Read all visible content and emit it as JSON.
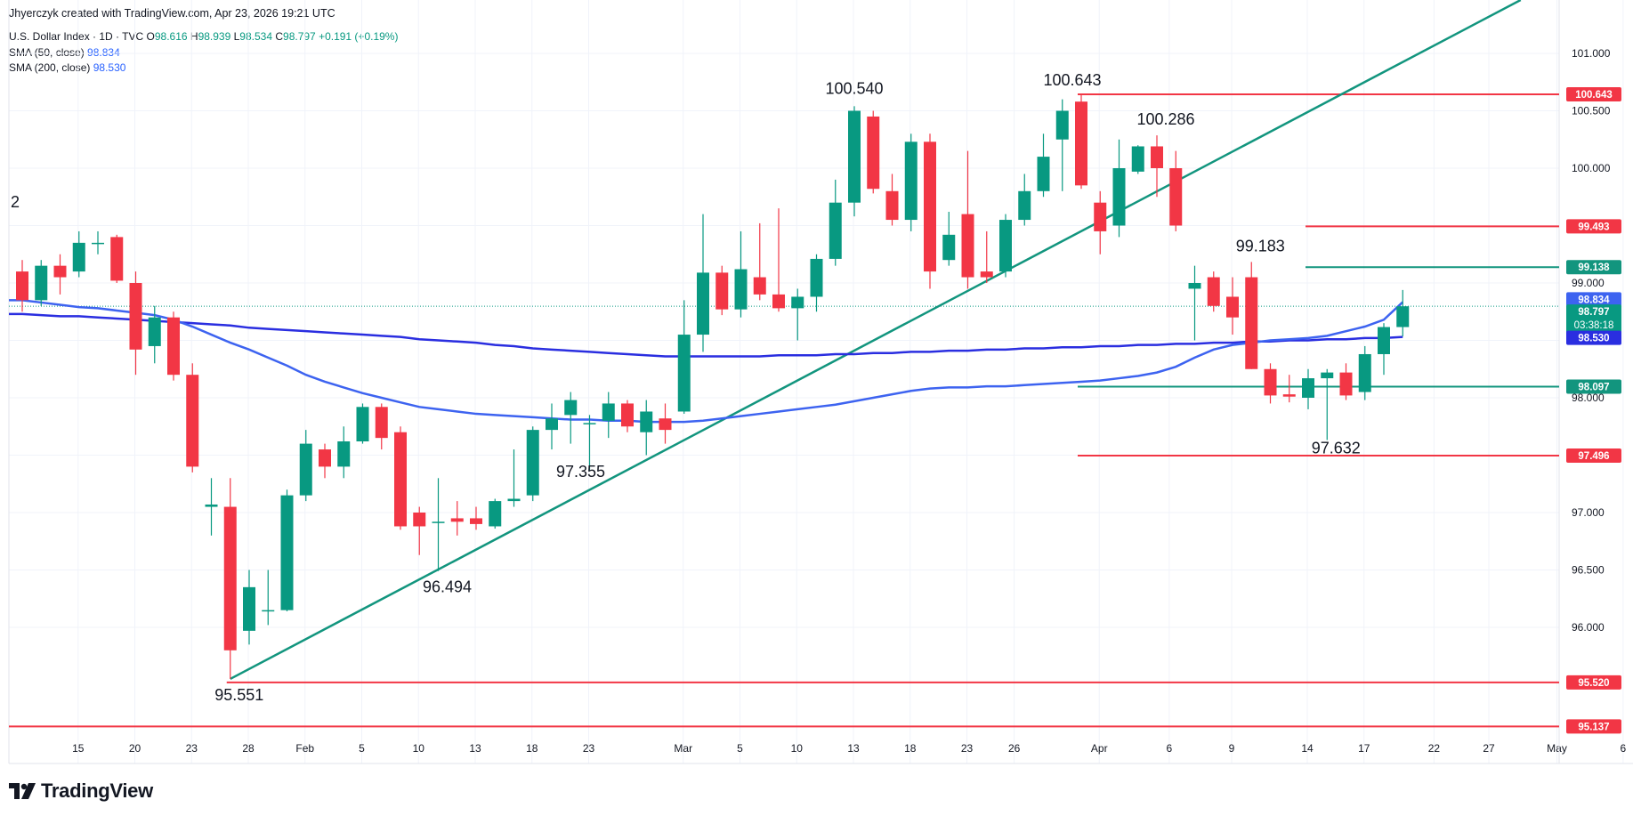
{
  "header": {
    "credit": "Jhyerczyk created with TradingView.com, Apr 23, 2026 19:21 UTC",
    "symbol": "U.S. Dollar Index · 1D · TVC",
    "open_label": "O",
    "open": "98.616",
    "high_label": "H",
    "high": "98.939",
    "low_label": "L",
    "low": "98.534",
    "close_label": "C",
    "close": "98.797",
    "change": "+0.191 (+0.19%)",
    "sma50_label": "SMA (50, close)",
    "sma50_value": "98.834",
    "sma200_label": "SMA (200, close)",
    "sma200_value": "98.530"
  },
  "logo_text": "TradingView",
  "colors": {
    "up": "#089981",
    "down": "#f23645",
    "sma50": "#3d63f0",
    "sma200": "#2a2ee0",
    "trend": "#12957e",
    "red_level": "#f23645",
    "green_level": "#12957e",
    "grid": "#f0f3fa"
  },
  "chart_data": {
    "type": "candlestick",
    "title": "U.S. Dollar Index · 1D · TVC",
    "x_ticks": [
      "15",
      "20",
      "23",
      "28",
      "Feb",
      "5",
      "10",
      "13",
      "18",
      "23",
      "Mar",
      "5",
      "10",
      "13",
      "18",
      "23",
      "26",
      "Apr",
      "6",
      "9",
      "14",
      "17",
      "22",
      "27",
      "May",
      "6"
    ],
    "y_ticks": [
      "96.000",
      "96.500",
      "97.000",
      "97.500",
      "98.000",
      "98.500",
      "99.000",
      "99.500",
      "100.000",
      "100.500",
      "101.000"
    ],
    "ylim": [
      95.0,
      101.3
    ],
    "candles": [
      {
        "date": "Jan 12",
        "o": 99.1,
        "h": 99.2,
        "l": 98.75,
        "c": 98.85
      },
      {
        "date": "Jan 13",
        "o": 98.85,
        "h": 99.2,
        "l": 98.8,
        "c": 99.15
      },
      {
        "date": "Jan 14",
        "o": 99.15,
        "h": 99.25,
        "l": 98.9,
        "c": 99.05
      },
      {
        "date": "Jan 15",
        "o": 99.1,
        "h": 99.45,
        "l": 99.05,
        "c": 99.35
      },
      {
        "date": "Jan 16",
        "o": 99.35,
        "h": 99.45,
        "l": 99.25,
        "c": 99.35
      },
      {
        "date": "Jan 19",
        "o": 99.4,
        "h": 99.42,
        "l": 99.0,
        "c": 99.02
      },
      {
        "date": "Jan 20",
        "o": 99.0,
        "h": 99.1,
        "l": 98.2,
        "c": 98.42
      },
      {
        "date": "Jan 21",
        "o": 98.45,
        "h": 98.8,
        "l": 98.3,
        "c": 98.7
      },
      {
        "date": "Jan 22",
        "o": 98.7,
        "h": 98.75,
        "l": 98.15,
        "c": 98.2
      },
      {
        "date": "Jan 23",
        "o": 98.2,
        "h": 98.3,
        "l": 97.35,
        "c": 97.4
      },
      {
        "date": "Jan 26",
        "o": 97.05,
        "h": 97.3,
        "l": 96.8,
        "c": 97.07
      },
      {
        "date": "Jan 27",
        "o": 97.05,
        "h": 97.3,
        "l": 95.55,
        "c": 95.8
      },
      {
        "date": "Jan 28",
        "o": 95.97,
        "h": 96.5,
        "l": 95.85,
        "c": 96.35
      },
      {
        "date": "Jan 29",
        "o": 96.14,
        "h": 96.5,
        "l": 96.02,
        "c": 96.15
      },
      {
        "date": "Jan 30",
        "o": 96.15,
        "h": 97.2,
        "l": 96.14,
        "c": 97.15
      },
      {
        "date": "Feb 2",
        "o": 97.15,
        "h": 97.72,
        "l": 97.1,
        "c": 97.6
      },
      {
        "date": "Feb 3",
        "o": 97.55,
        "h": 97.6,
        "l": 97.3,
        "c": 97.4
      },
      {
        "date": "Feb 4",
        "o": 97.4,
        "h": 97.75,
        "l": 97.3,
        "c": 97.62
      },
      {
        "date": "Feb 5",
        "o": 97.62,
        "h": 97.95,
        "l": 97.6,
        "c": 97.92
      },
      {
        "date": "Feb 6",
        "o": 97.92,
        "h": 97.95,
        "l": 97.55,
        "c": 97.65
      },
      {
        "date": "Feb 9",
        "o": 97.7,
        "h": 97.75,
        "l": 96.85,
        "c": 96.88
      },
      {
        "date": "Feb 10",
        "o": 97.0,
        "h": 97.05,
        "l": 96.63,
        "c": 96.88
      },
      {
        "date": "Feb 11",
        "o": 96.92,
        "h": 97.3,
        "l": 96.49,
        "c": 96.92
      },
      {
        "date": "Feb 12",
        "o": 96.95,
        "h": 97.1,
        "l": 96.8,
        "c": 96.92
      },
      {
        "date": "Feb 13",
        "o": 96.95,
        "h": 97.05,
        "l": 96.85,
        "c": 96.9
      },
      {
        "date": "Feb 16",
        "o": 96.88,
        "h": 97.12,
        "l": 96.86,
        "c": 97.1
      },
      {
        "date": "Feb 17",
        "o": 97.1,
        "h": 97.55,
        "l": 97.05,
        "c": 97.12
      },
      {
        "date": "Feb 18",
        "o": 97.15,
        "h": 97.75,
        "l": 97.1,
        "c": 97.72
      },
      {
        "date": "Feb 19",
        "o": 97.72,
        "h": 97.95,
        "l": 97.55,
        "c": 97.82
      },
      {
        "date": "Feb 20",
        "o": 97.85,
        "h": 98.05,
        "l": 97.6,
        "c": 97.98
      },
      {
        "date": "Feb 23",
        "o": 97.78,
        "h": 97.85,
        "l": 97.36,
        "c": 97.78
      },
      {
        "date": "Feb 24",
        "o": 97.8,
        "h": 98.05,
        "l": 97.65,
        "c": 97.95
      },
      {
        "date": "Feb 25",
        "o": 97.95,
        "h": 97.98,
        "l": 97.7,
        "c": 97.75
      },
      {
        "date": "Feb 26",
        "o": 97.7,
        "h": 97.98,
        "l": 97.5,
        "c": 97.88
      },
      {
        "date": "Feb 27",
        "o": 97.82,
        "h": 97.95,
        "l": 97.6,
        "c": 97.72
      },
      {
        "date": "Mar 2",
        "o": 97.88,
        "h": 98.85,
        "l": 97.86,
        "c": 98.55
      },
      {
        "date": "Mar 3",
        "o": 98.55,
        "h": 99.6,
        "l": 98.4,
        "c": 99.09
      },
      {
        "date": "Mar 4",
        "o": 99.09,
        "h": 99.15,
        "l": 98.72,
        "c": 98.77
      },
      {
        "date": "Mar 5",
        "o": 98.77,
        "h": 99.45,
        "l": 98.7,
        "c": 99.12
      },
      {
        "date": "Mar 6",
        "o": 99.05,
        "h": 99.52,
        "l": 98.85,
        "c": 98.9
      },
      {
        "date": "Mar 9",
        "o": 98.9,
        "h": 99.65,
        "l": 98.75,
        "c": 98.78
      },
      {
        "date": "Mar 10",
        "o": 98.78,
        "h": 98.95,
        "l": 98.5,
        "c": 98.88
      },
      {
        "date": "Mar 11",
        "o": 98.88,
        "h": 99.25,
        "l": 98.75,
        "c": 99.21
      },
      {
        "date": "Mar 12",
        "o": 99.21,
        "h": 99.9,
        "l": 99.15,
        "c": 99.7
      },
      {
        "date": "Mar 13",
        "o": 99.7,
        "h": 100.54,
        "l": 99.58,
        "c": 100.5
      },
      {
        "date": "Mar 16",
        "o": 100.45,
        "h": 100.5,
        "l": 99.78,
        "c": 99.82
      },
      {
        "date": "Mar 17",
        "o": 99.8,
        "h": 99.95,
        "l": 99.5,
        "c": 99.55
      },
      {
        "date": "Mar 18",
        "o": 99.55,
        "h": 100.3,
        "l": 99.45,
        "c": 100.23
      },
      {
        "date": "Mar 19",
        "o": 100.23,
        "h": 100.3,
        "l": 98.95,
        "c": 99.1
      },
      {
        "date": "Mar 20",
        "o": 99.2,
        "h": 99.62,
        "l": 99.15,
        "c": 99.42
      },
      {
        "date": "Mar 23",
        "o": 99.6,
        "h": 100.15,
        "l": 98.95,
        "c": 99.05
      },
      {
        "date": "Mar 24",
        "o": 99.1,
        "h": 99.45,
        "l": 99.0,
        "c": 99.05
      },
      {
        "date": "Mar 25",
        "o": 99.1,
        "h": 99.6,
        "l": 99.05,
        "c": 99.55
      },
      {
        "date": "Mar 26",
        "o": 99.55,
        "h": 99.95,
        "l": 99.5,
        "c": 99.8
      },
      {
        "date": "Mar 27",
        "o": 99.8,
        "h": 100.3,
        "l": 99.75,
        "c": 100.1
      },
      {
        "date": "Mar 30",
        "o": 100.25,
        "h": 100.6,
        "l": 99.8,
        "c": 100.5
      },
      {
        "date": "Mar 31",
        "o": 100.58,
        "h": 100.643,
        "l": 99.82,
        "c": 99.85
      },
      {
        "date": "Apr 1",
        "o": 99.7,
        "h": 99.8,
        "l": 99.25,
        "c": 99.45
      },
      {
        "date": "Apr 2",
        "o": 99.5,
        "h": 100.25,
        "l": 99.4,
        "c": 100.0
      },
      {
        "date": "Apr 3",
        "o": 99.97,
        "h": 100.2,
        "l": 99.95,
        "c": 100.19
      },
      {
        "date": "Apr 6",
        "o": 100.19,
        "h": 100.286,
        "l": 99.75,
        "c": 100.0
      },
      {
        "date": "Apr 7",
        "o": 100.0,
        "h": 100.15,
        "l": 99.45,
        "c": 99.5
      },
      {
        "date": "Apr 8",
        "o": 98.95,
        "h": 99.15,
        "l": 98.5,
        "c": 99.0
      },
      {
        "date": "Apr 9",
        "o": 99.05,
        "h": 99.1,
        "l": 98.75,
        "c": 98.8
      },
      {
        "date": "Apr 10",
        "o": 98.88,
        "h": 99.05,
        "l": 98.55,
        "c": 98.7
      },
      {
        "date": "Apr 13",
        "o": 99.05,
        "h": 99.183,
        "l": 98.25,
        "c": 98.25
      },
      {
        "date": "Apr 14",
        "o": 98.25,
        "h": 98.3,
        "l": 97.95,
        "c": 98.02
      },
      {
        "date": "Apr 15",
        "o": 98.03,
        "h": 98.2,
        "l": 97.96,
        "c": 98.01
      },
      {
        "date": "Apr 16",
        "o": 98.0,
        "h": 98.25,
        "l": 97.9,
        "c": 98.17
      },
      {
        "date": "Apr 17",
        "o": 98.17,
        "h": 98.25,
        "l": 97.632,
        "c": 98.22
      },
      {
        "date": "Apr 20",
        "o": 98.22,
        "h": 98.3,
        "l": 97.98,
        "c": 98.02
      },
      {
        "date": "Apr 21",
        "o": 98.05,
        "h": 98.45,
        "l": 97.98,
        "c": 98.38
      },
      {
        "date": "Apr 22",
        "o": 98.38,
        "h": 98.65,
        "l": 98.2,
        "c": 98.616
      },
      {
        "date": "Apr 23",
        "o": 98.616,
        "h": 98.939,
        "l": 98.534,
        "c": 98.797
      }
    ],
    "sma50": [
      98.85,
      98.83,
      98.81,
      98.79,
      98.78,
      98.76,
      98.74,
      98.72,
      98.68,
      98.62,
      98.55,
      98.48,
      98.42,
      98.35,
      98.28,
      98.2,
      98.14,
      98.09,
      98.04,
      98.0,
      97.96,
      97.92,
      97.9,
      97.88,
      97.86,
      97.85,
      97.84,
      97.83,
      97.82,
      97.81,
      97.81,
      97.8,
      97.8,
      97.79,
      97.79,
      97.79,
      97.8,
      97.82,
      97.84,
      97.86,
      97.88,
      97.9,
      97.92,
      97.94,
      97.97,
      98.0,
      98.03,
      98.06,
      98.08,
      98.09,
      98.09,
      98.1,
      98.1,
      98.11,
      98.12,
      98.13,
      98.14,
      98.15,
      98.17,
      98.19,
      98.22,
      98.27,
      98.35,
      98.42,
      98.46,
      98.48,
      98.5,
      98.51,
      98.52,
      98.54,
      98.58,
      98.62,
      98.68,
      98.834
    ],
    "sma200": [
      98.73,
      98.72,
      98.71,
      98.71,
      98.7,
      98.69,
      98.68,
      98.67,
      98.66,
      98.65,
      98.64,
      98.63,
      98.61,
      98.6,
      98.59,
      98.58,
      98.57,
      98.56,
      98.55,
      98.54,
      98.53,
      98.51,
      98.5,
      98.49,
      98.48,
      98.46,
      98.45,
      98.43,
      98.42,
      98.41,
      98.4,
      98.39,
      98.38,
      98.37,
      98.36,
      98.36,
      98.36,
      98.36,
      98.36,
      98.36,
      98.37,
      98.37,
      98.37,
      98.38,
      98.38,
      98.39,
      98.39,
      98.4,
      98.4,
      98.41,
      98.41,
      98.42,
      98.42,
      98.43,
      98.43,
      98.44,
      98.44,
      98.45,
      98.45,
      98.46,
      98.46,
      98.47,
      98.47,
      98.48,
      98.48,
      98.49,
      98.49,
      98.5,
      98.5,
      98.51,
      98.51,
      98.52,
      98.52,
      98.53
    ],
    "annotations": [
      "100.540",
      "100.643",
      "100.286",
      "99.183",
      "97.632",
      "97.355",
      "96.494",
      "95.551",
      "2"
    ],
    "trendline": {
      "from": {
        "date": "Jan 27",
        "value": 95.551
      },
      "to": {
        "date": "Apr 23",
        "value": 101.05
      }
    },
    "levels": [
      {
        "value": 100.643,
        "label": "100.643",
        "color": "red",
        "from": "Mar 31"
      },
      {
        "value": 99.493,
        "label": "99.493",
        "color": "red",
        "from": "Apr 17"
      },
      {
        "value": 99.138,
        "label": "99.138",
        "color": "green",
        "from": "Apr 17"
      },
      {
        "value": 98.097,
        "label": "98.097",
        "color": "green",
        "from": "Mar 31"
      },
      {
        "value": 97.496,
        "label": "97.496",
        "color": "red",
        "from": "Mar 31"
      },
      {
        "value": 95.52,
        "label": "95.520",
        "color": "red",
        "from": "Jan 27"
      },
      {
        "value": 95.137,
        "label": "95.137",
        "color": "red",
        "from": "Jan 12"
      }
    ],
    "price_badges": [
      {
        "value": 98.834,
        "label": "98.834",
        "kind": "sma50"
      },
      {
        "value": 98.797,
        "label": "98.797",
        "sub": "03:38:18",
        "kind": "price"
      },
      {
        "value": 98.53,
        "label": "98.530",
        "kind": "sma200"
      }
    ]
  }
}
